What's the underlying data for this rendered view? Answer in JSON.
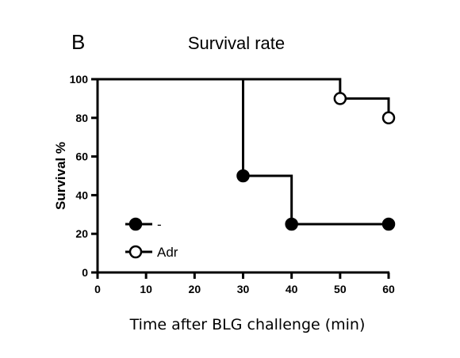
{
  "panel_label": "B",
  "chart_data": {
    "type": "line",
    "subtype": "step",
    "title": "Survival rate",
    "xlabel": "Time after BLG challenge (min)",
    "ylabel": "Survival %",
    "xlim": [
      0,
      60
    ],
    "ylim": [
      0,
      100
    ],
    "x_ticks": [
      0,
      10,
      20,
      30,
      40,
      50,
      60
    ],
    "y_ticks": [
      0,
      20,
      40,
      60,
      80,
      100
    ],
    "grid": false,
    "legend_position": "bottom-left",
    "series": [
      {
        "name": "-",
        "marker": "filled-circle",
        "color": "#000000",
        "points": [
          {
            "x": 0,
            "y": 100
          },
          {
            "x": 30,
            "y": 50
          },
          {
            "x": 40,
            "y": 25
          },
          {
            "x": 60,
            "y": 25
          }
        ],
        "marker_x": [
          30,
          40,
          60
        ]
      },
      {
        "name": "Adr",
        "marker": "open-circle",
        "color": "#000000",
        "points": [
          {
            "x": 0,
            "y": 100
          },
          {
            "x": 50,
            "y": 90
          },
          {
            "x": 60,
            "y": 80
          }
        ],
        "marker_x": [
          50,
          60
        ]
      }
    ]
  }
}
